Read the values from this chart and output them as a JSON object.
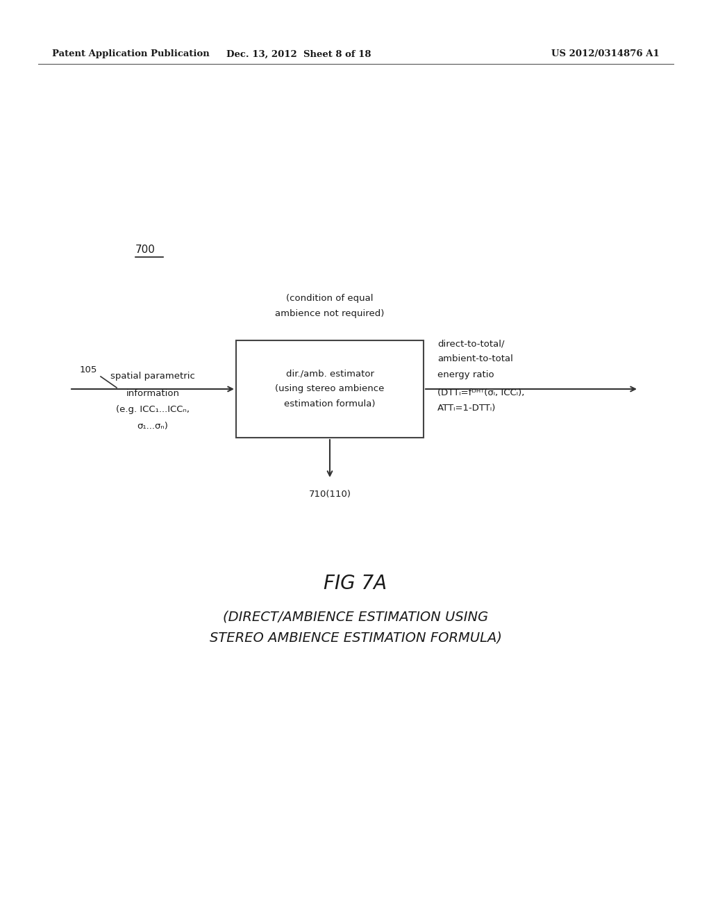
{
  "bg_color": "#ffffff",
  "header_left": "Patent Application Publication",
  "header_mid": "Dec. 13, 2012  Sheet 8 of 18",
  "header_right": "US 2012/0314876 A1",
  "fig_label": "700",
  "box_text_line1": "dir./amb. estimator",
  "box_text_line2": "(using stereo ambience",
  "box_text_line3": "estimation formula)",
  "condition_line1": "(condition of equal",
  "condition_line2": "ambience not required)",
  "input_num": "105",
  "input_line1": "spatial parametric",
  "input_line2": "information",
  "input_line3": "(e.g. ICC₁...ICCₙ,",
  "input_line4": "σ₁...σₙ)",
  "output_line1": "direct-to-total/",
  "output_line2": "ambient-to-total",
  "output_line3": "energy ratio",
  "output_line4": "(DTTᵢ=fᴰᴴᵀ(σᵢ, ICCᵢ),",
  "output_line5": "ATTᵢ=1-DTTᵢ)",
  "bottom_label": "710(110)",
  "fig_title": "FIG 7A",
  "fig_sub1": "(DIRECT/AMBIENCE ESTIMATION USING",
  "fig_sub2": "STEREO AMBIENCE ESTIMATION FORMULA)"
}
